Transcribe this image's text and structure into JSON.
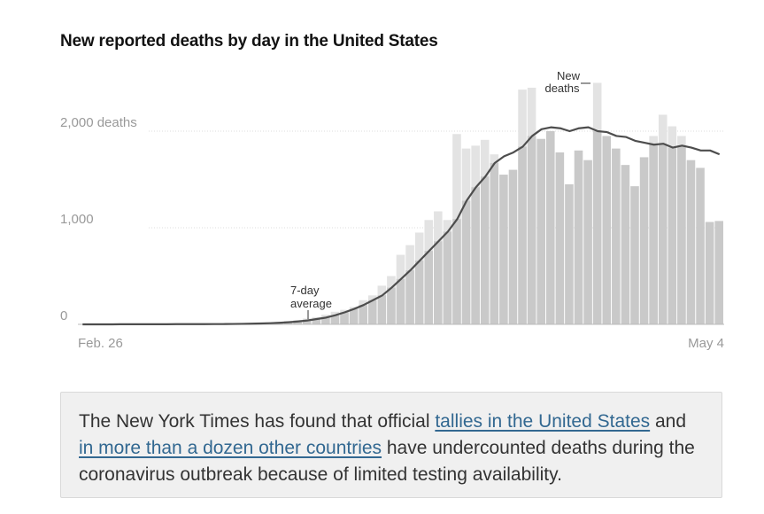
{
  "title": "New reported deaths by day in the United States",
  "chart_data": {
    "type": "bar",
    "x_start_label": "Feb. 26",
    "x_end_label": "May 4",
    "y_tick_labels": [
      "0",
      "1,000",
      "2,000 deaths"
    ],
    "y_tick_values": [
      0,
      1000,
      2000
    ],
    "ylim": [
      0,
      2500
    ],
    "series": [
      {
        "name": "New deaths",
        "values": [
          0,
          0,
          0,
          1,
          0,
          0,
          0,
          1,
          2,
          1,
          2,
          2,
          2,
          3,
          4,
          5,
          5,
          10,
          10,
          15,
          20,
          25,
          35,
          45,
          60,
          75,
          100,
          130,
          150,
          180,
          250,
          300,
          400,
          500,
          720,
          820,
          950,
          1080,
          1170,
          1080,
          1970,
          1820,
          1850,
          1910,
          1760,
          1550,
          1600,
          2430,
          2450,
          1920,
          2000,
          1780,
          1450,
          1800,
          1700,
          2500,
          1950,
          1820,
          1650,
          1430,
          1730,
          1950,
          2170,
          2050,
          1950,
          1700,
          1620,
          1060,
          1070
        ]
      },
      {
        "name": "7-day average",
        "values": [
          0,
          0,
          0,
          0,
          1,
          1,
          1,
          1,
          1,
          1,
          2,
          2,
          2,
          2,
          3,
          3,
          4,
          5,
          7,
          9,
          12,
          16,
          22,
          30,
          40,
          55,
          70,
          95,
          125,
          160,
          200,
          250,
          300,
          380,
          470,
          560,
          660,
          760,
          860,
          960,
          1090,
          1280,
          1420,
          1530,
          1670,
          1740,
          1780,
          1840,
          1950,
          2020,
          2040,
          2030,
          2000,
          2030,
          2040,
          2000,
          1990,
          1950,
          1940,
          1900,
          1880,
          1860,
          1870,
          1830,
          1850,
          1830,
          1800,
          1800,
          1760
        ]
      }
    ],
    "annotations": [
      {
        "text": [
          "New",
          "deaths"
        ],
        "series": "New deaths"
      },
      {
        "text": [
          "7-day",
          "average"
        ],
        "series": "7-day average"
      }
    ],
    "colors": {
      "bar": "#c9c9c9",
      "bar_light": "#e3e3e3",
      "avg_line": "#4d4d4d",
      "axis_text": "#999999"
    }
  },
  "note": {
    "before": "The New York Times has found that official ",
    "link1": "tallies in the United States",
    "middle": " and ",
    "link2": "in more than a dozen other countries",
    "after": " have undercounted deaths during the coronavirus outbreak because of limited testing availability."
  }
}
